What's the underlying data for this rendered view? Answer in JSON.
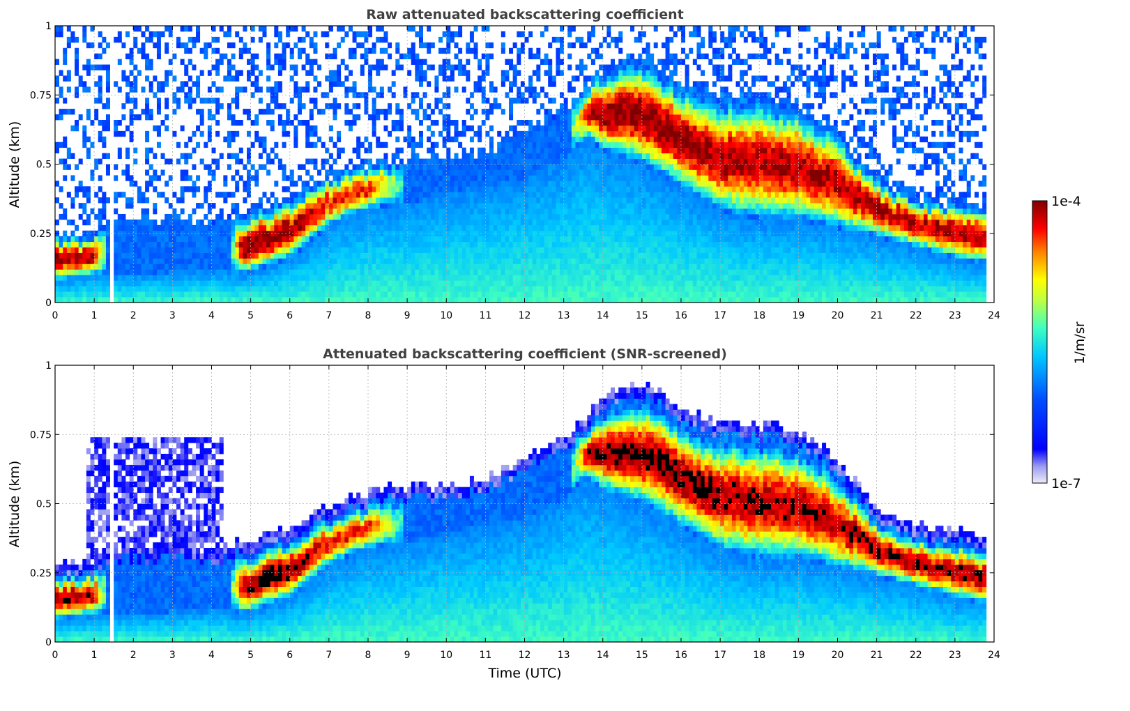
{
  "chart_data": [
    {
      "type": "heatmap",
      "title": "Raw attenuated backscattering coefficient",
      "xlabel": "",
      "ylabel": "Altitude (km)",
      "xlim": [
        0,
        24
      ],
      "ylim": [
        0,
        1
      ],
      "xticks": [
        0,
        1,
        2,
        3,
        4,
        5,
        6,
        7,
        8,
        9,
        10,
        11,
        12,
        13,
        14,
        15,
        16,
        17,
        18,
        19,
        20,
        21,
        22,
        23,
        24
      ],
      "yticks": [
        0,
        0.25,
        0.5,
        0.75,
        1
      ],
      "ytick_labels": [
        "0",
        "0.25",
        "0.5",
        "0.75",
        "1"
      ],
      "grid": true,
      "data_gap_time_utc": 1.45,
      "data_end_time_utc": 23.8,
      "layer_profile": {
        "time_utc": [
          0,
          1,
          1.5,
          4.3,
          4.8,
          6,
          7,
          8,
          9,
          10,
          11,
          12,
          13,
          13.6,
          14,
          15,
          16,
          17,
          18,
          19,
          20,
          21,
          22,
          23,
          23.8
        ],
        "layer_top_km": [
          0.25,
          0.25,
          0.3,
          0.3,
          0.32,
          0.38,
          0.46,
          0.5,
          0.52,
          0.52,
          0.55,
          0.62,
          0.7,
          0.78,
          0.85,
          0.9,
          0.8,
          0.75,
          0.75,
          0.72,
          0.62,
          0.45,
          0.38,
          0.36,
          0.35
        ],
        "layer_base_km": [
          0.08,
          0.1,
          0.1,
          0.12,
          0.1,
          0.16,
          0.28,
          0.34,
          0.36,
          0.4,
          0.42,
          0.45,
          0.52,
          0.6,
          0.55,
          0.5,
          0.42,
          0.33,
          0.3,
          0.3,
          0.27,
          0.24,
          0.2,
          0.16,
          0.14
        ],
        "peak_log10_value": [
          -4.1,
          -4.1,
          -6.3,
          -6.3,
          -4.0,
          -4.0,
          -4.3,
          -4.3,
          -5.6,
          -6.0,
          -6.0,
          -6.0,
          -6.0,
          -4.2,
          -4.0,
          -4.0,
          -4.0,
          -4.1,
          -4.1,
          -4.1,
          -4.1,
          -4.1,
          -4.1,
          -4.1,
          -4.1
        ]
      }
    },
    {
      "type": "heatmap",
      "title": "Attenuated backscattering coefficient (SNR-screened)",
      "xlabel": "Time (UTC)",
      "ylabel": "Altitude (km)",
      "xlim": [
        0,
        24
      ],
      "ylim": [
        0,
        1
      ],
      "xticks": [
        0,
        1,
        2,
        3,
        4,
        5,
        6,
        7,
        8,
        9,
        10,
        11,
        12,
        13,
        14,
        15,
        16,
        17,
        18,
        19,
        20,
        21,
        22,
        23,
        24
      ],
      "yticks": [
        0,
        0.25,
        0.5,
        0.75,
        1
      ],
      "ytick_labels": [
        "0",
        "0.25",
        "0.5",
        "0.75",
        "1"
      ],
      "grid": true,
      "data_gap_time_utc": 1.45,
      "data_end_time_utc": 23.8,
      "saturated_color": "#000000"
    }
  ],
  "colorbar": {
    "label": "1/m/sr",
    "max_label": "1e-4",
    "min_label": "1e-7",
    "scale": "log",
    "range": [
      1e-07,
      0.0001
    ],
    "colormap": "jet"
  }
}
